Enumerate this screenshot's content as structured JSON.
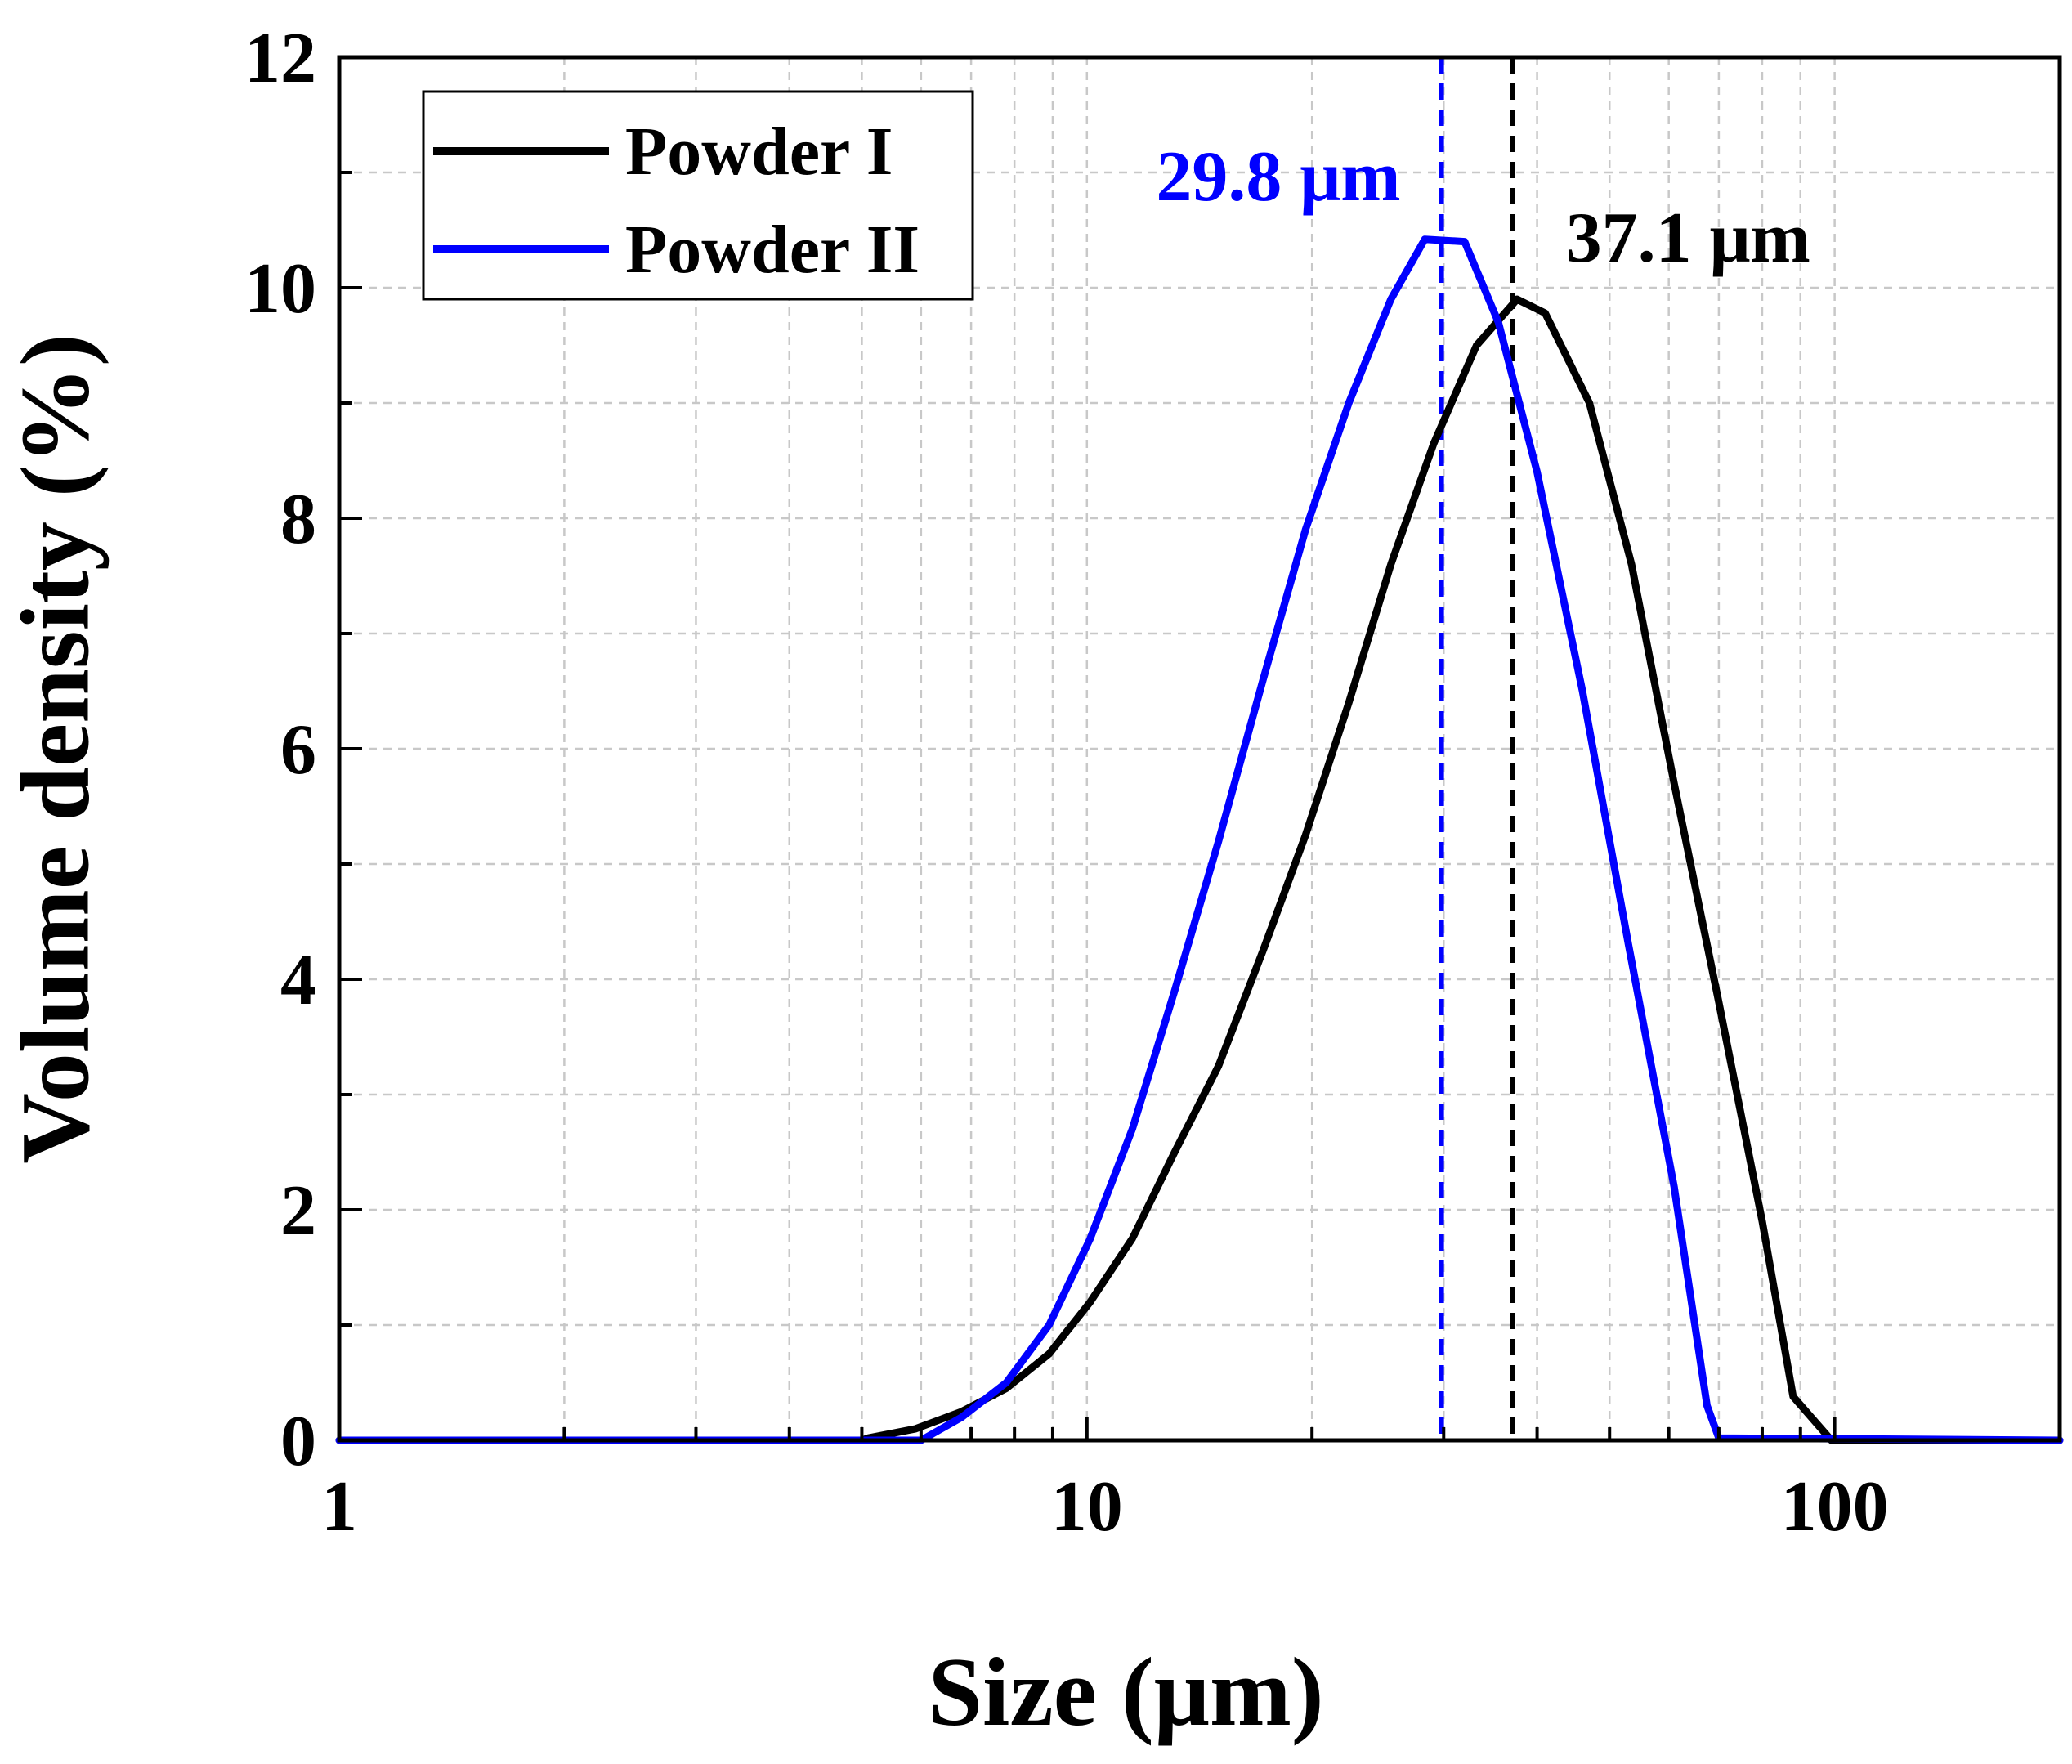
{
  "chart_data": {
    "type": "line",
    "xscale": "log",
    "xlabel": "Size (μm)",
    "ylabel": "Volume density (%)",
    "xlim": [
      1,
      200
    ],
    "ylim": [
      0,
      12
    ],
    "x_ticks": [
      1,
      10,
      100
    ],
    "x_tick_labels": [
      "1",
      "10",
      "100"
    ],
    "y_ticks": [
      0,
      2,
      4,
      6,
      8,
      10,
      12
    ],
    "y_tick_labels": [
      "0",
      "2",
      "4",
      "6",
      "8",
      "10",
      "12"
    ],
    "grid": true,
    "legend_position": "top-left",
    "series": [
      {
        "name": "Powder I",
        "color": "#000000",
        "x": [
          1,
          5,
          5.1,
          5.9,
          6.8,
          7.8,
          8.9,
          10.1,
          11.5,
          13.1,
          15.0,
          17.2,
          19.6,
          22.4,
          25.5,
          29.1,
          33.2,
          37.6,
          41.0,
          47.0,
          53.5,
          61.0,
          70.0,
          80.0,
          88.0,
          99.0,
          200
        ],
        "y": [
          0,
          0,
          0.02,
          0.1,
          0.25,
          0.45,
          0.75,
          1.2,
          1.75,
          2.5,
          3.25,
          4.25,
          5.25,
          6.4,
          7.6,
          8.65,
          9.5,
          9.9,
          9.78,
          9.0,
          7.6,
          5.7,
          3.8,
          1.9,
          0.38,
          0.0,
          0
        ]
      },
      {
        "name": "Powder II",
        "color": "#0000ff",
        "x": [
          1,
          6.0,
          6.8,
          7.8,
          8.9,
          10.1,
          11.5,
          13.1,
          15.0,
          17.2,
          19.6,
          22.4,
          25.5,
          28.3,
          32.0,
          35.5,
          40.0,
          46.0,
          53.0,
          61.0,
          67.5,
          70.0,
          200
        ],
        "y": [
          0,
          0,
          0.2,
          0.5,
          1.0,
          1.75,
          2.7,
          3.9,
          5.2,
          6.6,
          7.9,
          9.0,
          9.9,
          10.42,
          10.4,
          9.7,
          8.4,
          6.5,
          4.3,
          2.2,
          0.3,
          0.02,
          0
        ]
      }
    ],
    "reference_lines": [
      {
        "x": 29.8,
        "color": "#0000ff",
        "label": "29.8 μm"
      },
      {
        "x": 37.1,
        "color": "#000000",
        "label": "37.1 μm"
      }
    ]
  }
}
